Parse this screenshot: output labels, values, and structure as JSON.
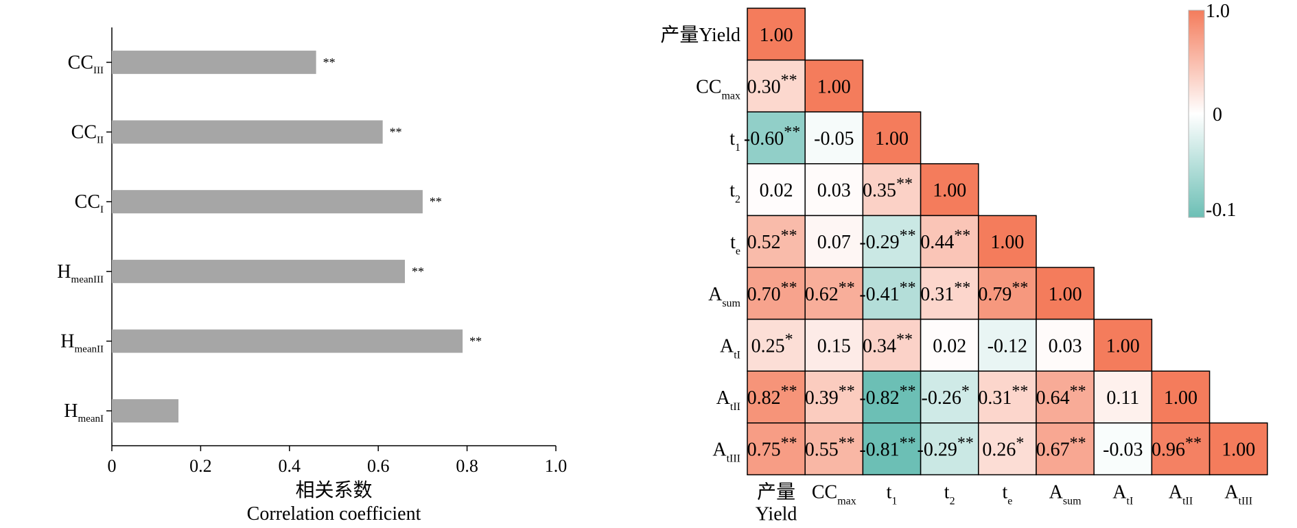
{
  "chart_data": [
    {
      "type": "bar",
      "orientation": "horizontal",
      "categories": [
        {
          "main": "H",
          "sub": "meanI"
        },
        {
          "main": "H",
          "sub": "meanII"
        },
        {
          "main": "H",
          "sub": "meanIII"
        },
        {
          "main": "CC",
          "sub": "I"
        },
        {
          "main": "CC",
          "sub": "II"
        },
        {
          "main": "CC",
          "sub": "III"
        }
      ],
      "values": [
        0.15,
        0.79,
        0.66,
        0.7,
        0.61,
        0.46
      ],
      "significance": [
        "",
        "**",
        "**",
        "**",
        "**",
        "**"
      ],
      "bar_color": "#a6a6a6",
      "xlim": [
        0,
        1.0
      ],
      "xticks": [
        "0",
        "0.2",
        "0.4",
        "0.6",
        "0.8",
        "1.0"
      ],
      "xticks_values": [
        0,
        0.2,
        0.4,
        0.6,
        0.8,
        1.0
      ],
      "xlabel_cn": "相关系数",
      "xlabel_en": "Correlation coefficient",
      "grid": false
    },
    {
      "type": "heatmap",
      "shape": "lower-triangular correlation matrix",
      "variables": [
        {
          "main": "产量Yield",
          "sub": "",
          "bottom": [
            "产量",
            "Yield"
          ]
        },
        {
          "main": "CC",
          "sub": "max"
        },
        {
          "main": "t",
          "sub": "1"
        },
        {
          "main": "t",
          "sub": "2"
        },
        {
          "main": "t",
          "sub": "e"
        },
        {
          "main": "A",
          "sub": "sum"
        },
        {
          "main": "A",
          "sub": "tI"
        },
        {
          "main": "A",
          "sub": "tII"
        },
        {
          "main": "A",
          "sub": "tIII"
        }
      ],
      "matrix": [
        [
          1.0
        ],
        [
          0.3,
          1.0
        ],
        [
          -0.6,
          -0.05,
          1.0
        ],
        [
          0.02,
          0.03,
          0.35,
          1.0
        ],
        [
          0.52,
          0.07,
          -0.29,
          0.44,
          1.0
        ],
        [
          0.7,
          0.62,
          -0.41,
          0.31,
          0.79,
          1.0
        ],
        [
          0.25,
          0.15,
          0.34,
          0.02,
          -0.12,
          0.03,
          1.0
        ],
        [
          0.82,
          0.39,
          -0.82,
          -0.26,
          0.31,
          0.64,
          0.11,
          1.0
        ],
        [
          0.75,
          0.55,
          -0.81,
          -0.29,
          0.26,
          0.67,
          -0.03,
          0.96,
          1.0
        ]
      ],
      "significance": [
        [
          ""
        ],
        [
          "**",
          ""
        ],
        [
          "**",
          "",
          ""
        ],
        [
          "",
          "",
          "**",
          ""
        ],
        [
          "**",
          "",
          "**",
          "**",
          ""
        ],
        [
          "**",
          "**",
          "**",
          "**",
          "**",
          ""
        ],
        [
          "*",
          "",
          "**",
          "",
          "",
          "",
          ""
        ],
        [
          "**",
          "**",
          "**",
          "*",
          "**",
          "**",
          "",
          ""
        ],
        [
          "**",
          "**",
          "**",
          "**",
          "*",
          "**",
          "",
          "**",
          ""
        ]
      ],
      "colorbar": {
        "ticks": [
          "1.0",
          "0",
          "-0.1"
        ],
        "colors": {
          "positive": "#f47c5c",
          "zero": "#ffffff",
          "negative": "#6cbfb5"
        }
      }
    }
  ]
}
